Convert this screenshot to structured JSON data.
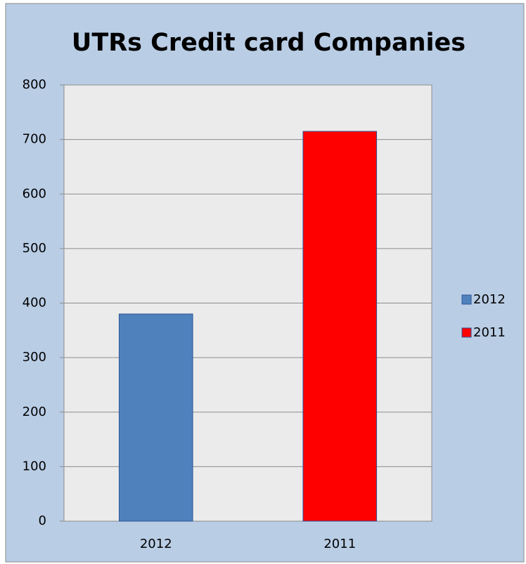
{
  "chart_data": {
    "type": "bar",
    "title": "UTRs Credit card Companies",
    "categories": [
      "2012",
      "2011"
    ],
    "series": [
      {
        "name": "2012",
        "color": "#4f81bd",
        "values": [
          380,
          null
        ]
      },
      {
        "name": "2011",
        "color": "#ff0000",
        "values": [
          null,
          715
        ]
      }
    ],
    "ylim": [
      0,
      800
    ],
    "yticks": [
      0,
      100,
      200,
      300,
      400,
      500,
      600,
      700,
      800
    ],
    "grid": true,
    "legend": "right"
  }
}
